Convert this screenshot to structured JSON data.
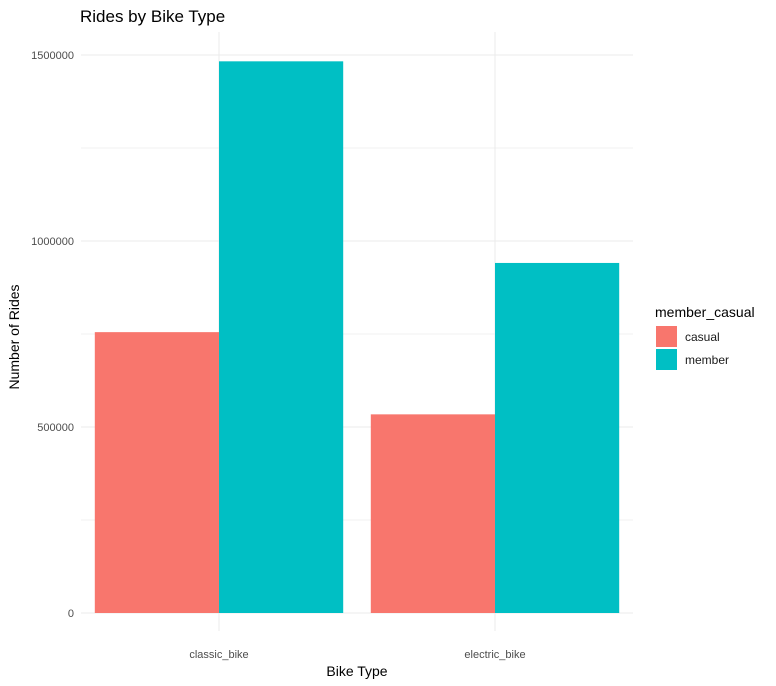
{
  "chart_data": {
    "type": "bar",
    "title": "Rides by Bike Type",
    "xlabel": "Bike Type",
    "ylabel": "Number of Rides",
    "categories": [
      "classic_bike",
      "electric_bike"
    ],
    "series": [
      {
        "name": "casual",
        "values": [
          755000,
          534000
        ],
        "color": "#F8766D"
      },
      {
        "name": "member",
        "values": [
          1483000,
          941000
        ],
        "color": "#00BFC4"
      }
    ],
    "legend_title": "member_casual",
    "legend_position": "right",
    "ylim": [
      0,
      1500000
    ],
    "yticks": [
      0,
      500000,
      1000000,
      1500000
    ],
    "ytick_labels": [
      "0",
      "500000",
      "1000000",
      "1500000"
    ],
    "grid": true,
    "grid_color": "#ebebeb"
  }
}
